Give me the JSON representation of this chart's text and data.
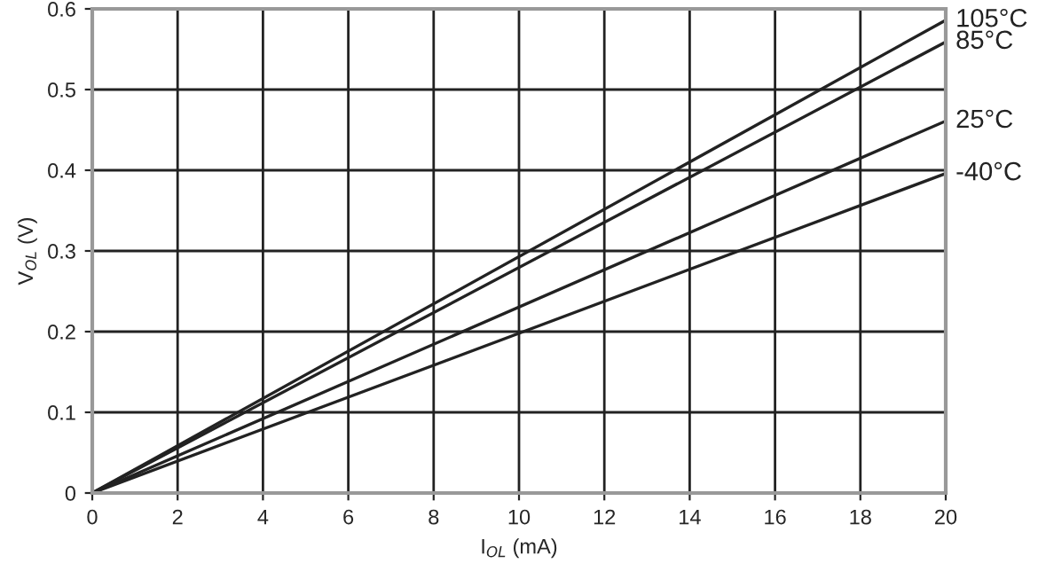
{
  "chart_data": {
    "type": "line",
    "xlabel": "I$_{OL}$ (mA)",
    "ylabel": "V$_{OL}$ (V)",
    "x": [
      0,
      20
    ],
    "series": [
      {
        "name": "105°C",
        "color": "#222222",
        "values": [
          0,
          0.586
        ]
      },
      {
        "name": "85°C",
        "color": "#222222",
        "values": [
          0,
          0.559
        ]
      },
      {
        "name": "25°C",
        "color": "#222222",
        "values": [
          0,
          0.461
        ]
      },
      {
        "name": "-40°C",
        "color": "#222222",
        "values": [
          0,
          0.396
        ]
      }
    ],
    "xlim": [
      0,
      20
    ],
    "ylim": [
      0,
      0.6
    ],
    "xticks": [
      0,
      2,
      4,
      6,
      8,
      10,
      12,
      14,
      16,
      18,
      20
    ],
    "yticks": [
      0,
      0.1,
      0.2,
      0.3,
      0.4,
      0.5,
      0.6
    ],
    "grid": true,
    "legend": false,
    "marker": "none",
    "line_style": "solid"
  }
}
